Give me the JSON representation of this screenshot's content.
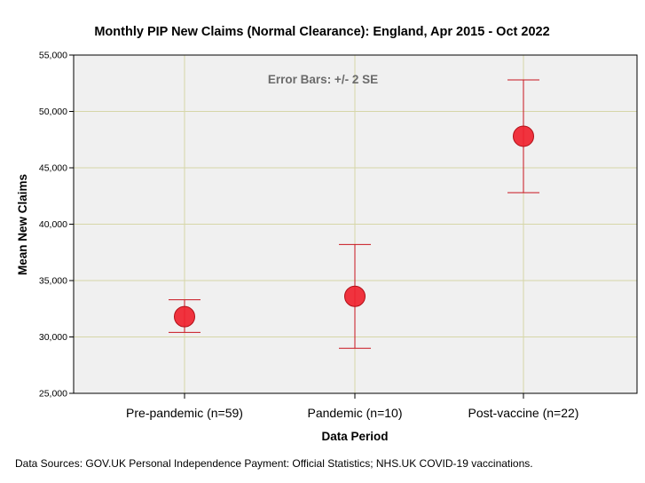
{
  "chart_data": {
    "type": "scatter",
    "title": "Monthly PIP New Claims (Normal Clearance): England, Apr 2015 - Oct 2022",
    "annotation": "Error Bars: +/- 2 SE",
    "xlabel": "Data Period",
    "ylabel": "Mean New Claims",
    "ylim": [
      25000,
      55000
    ],
    "y_ticks": [
      25000,
      30000,
      35000,
      40000,
      45000,
      50000,
      55000
    ],
    "y_tick_labels": [
      "25,000",
      "30,000",
      "35,000",
      "40,000",
      "45,000",
      "50,000",
      "55,000"
    ],
    "categories": [
      "Pre-pandemic (n=59)",
      "Pandemic (n=10)",
      "Post-vaccine (n=22)"
    ],
    "series": [
      {
        "values": [
          31800,
          33600,
          47800
        ],
        "error_low": [
          30400,
          29000,
          42800
        ],
        "error_high": [
          33300,
          38200,
          52800
        ]
      }
    ],
    "grid": true,
    "colors": {
      "plot_background": "#f0f0f0",
      "grid": "#d6d6a8",
      "marker_fill": "#f0232f",
      "marker_stroke": "#b01018",
      "error_bar": "#c8141e"
    }
  },
  "footnote": "Data Sources: GOV.UK Personal Independence Payment: Official Statistics;  NHS.UK COVID-19 vaccinations."
}
